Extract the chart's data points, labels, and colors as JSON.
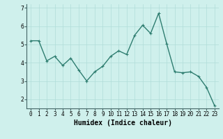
{
  "x": [
    0,
    1,
    2,
    3,
    4,
    5,
    6,
    7,
    8,
    9,
    10,
    11,
    12,
    13,
    14,
    15,
    16,
    17,
    18,
    19,
    20,
    21,
    22,
    23
  ],
  "y": [
    5.2,
    5.2,
    4.1,
    4.35,
    3.85,
    4.25,
    3.6,
    3.0,
    3.5,
    3.8,
    4.35,
    4.65,
    4.45,
    5.5,
    6.05,
    5.6,
    6.7,
    5.05,
    3.5,
    3.45,
    3.5,
    3.25,
    2.65,
    1.65
  ],
  "line_color": "#2e7d70",
  "marker": "+",
  "marker_size": 3,
  "marker_color": "#2e7d70",
  "bg_color": "#cff0ec",
  "grid_color": "#b0ddd8",
  "xlabel": "Humidex (Indice chaleur)",
  "ylim": [
    1.5,
    7.2
  ],
  "xlim": [
    -0.5,
    23.5
  ],
  "yticks": [
    2,
    3,
    4,
    5,
    6,
    7
  ],
  "xticks": [
    0,
    1,
    2,
    3,
    4,
    5,
    6,
    7,
    8,
    9,
    10,
    11,
    12,
    13,
    14,
    15,
    16,
    17,
    18,
    19,
    20,
    21,
    22,
    23
  ],
  "xlabel_fontsize": 7,
  "tick_fontsize": 5.5,
  "linewidth": 1.0
}
